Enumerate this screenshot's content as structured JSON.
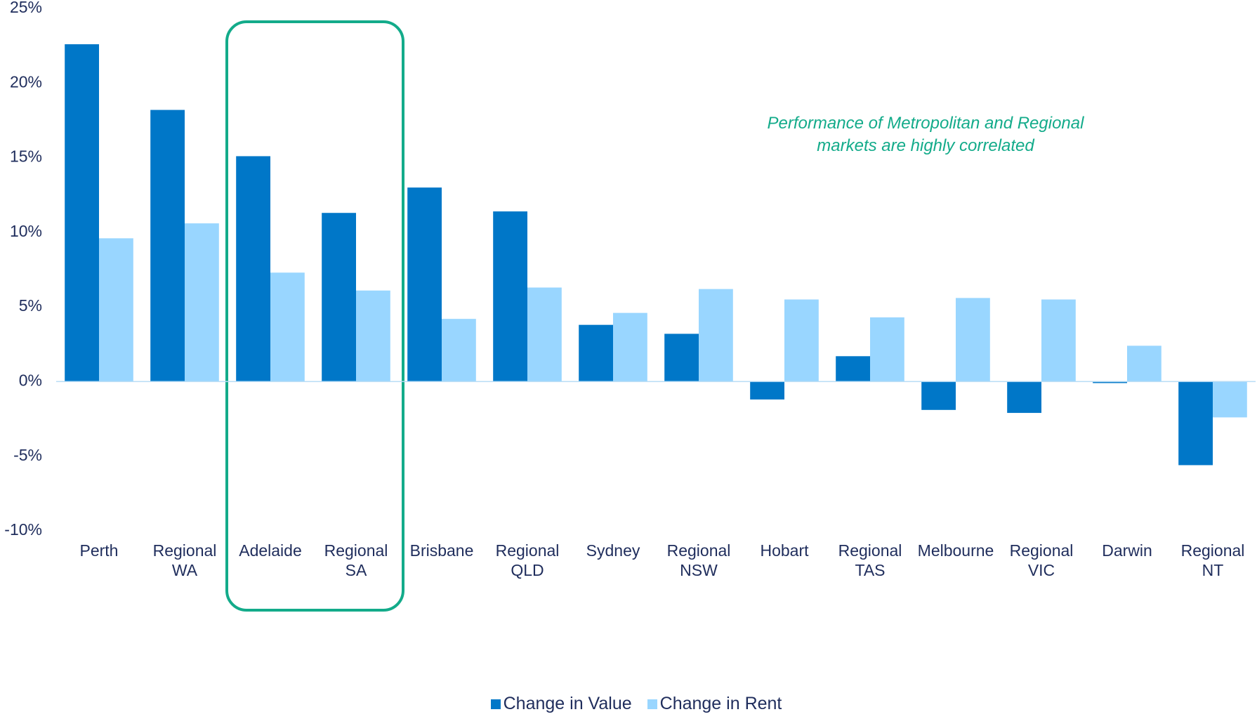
{
  "chart_data": {
    "type": "bar",
    "annotation": "Performance of Metropolitan and Regional markets are highly correlated",
    "categories": [
      "Perth",
      "Regional WA",
      "Adelaide",
      "Regional SA",
      "Brisbane",
      "Regional QLD",
      "Sydney",
      "Regional NSW",
      "Hobart",
      "Regional TAS",
      "Melbourne",
      "Regional VIC",
      "Darwin",
      "Regional NT"
    ],
    "series": [
      {
        "name": "Change in Value",
        "color": "#0077c8",
        "values": [
          22.6,
          18.2,
          15.1,
          11.3,
          13.0,
          11.4,
          3.8,
          3.2,
          -1.2,
          1.7,
          -1.9,
          -2.1,
          -0.1,
          -5.6
        ]
      },
      {
        "name": "Change in Rent",
        "color": "#99d6ff",
        "values": [
          9.6,
          10.6,
          7.3,
          6.1,
          4.2,
          6.3,
          4.6,
          6.2,
          5.5,
          4.3,
          5.6,
          5.5,
          2.4,
          -2.4
        ]
      }
    ],
    "ylim": [
      -10,
      25
    ],
    "yticks": [
      {
        "value": -10,
        "label": "-10%"
      },
      {
        "value": -5,
        "label": "-5%"
      },
      {
        "value": 0,
        "label": "0%"
      },
      {
        "value": 5,
        "label": "5%"
      },
      {
        "value": 10,
        "label": "10%"
      },
      {
        "value": 15,
        "label": "15%"
      },
      {
        "value": 20,
        "label": "20%"
      },
      {
        "value": 25,
        "label": "25%"
      }
    ],
    "grid": false,
    "legend": "bottom"
  }
}
